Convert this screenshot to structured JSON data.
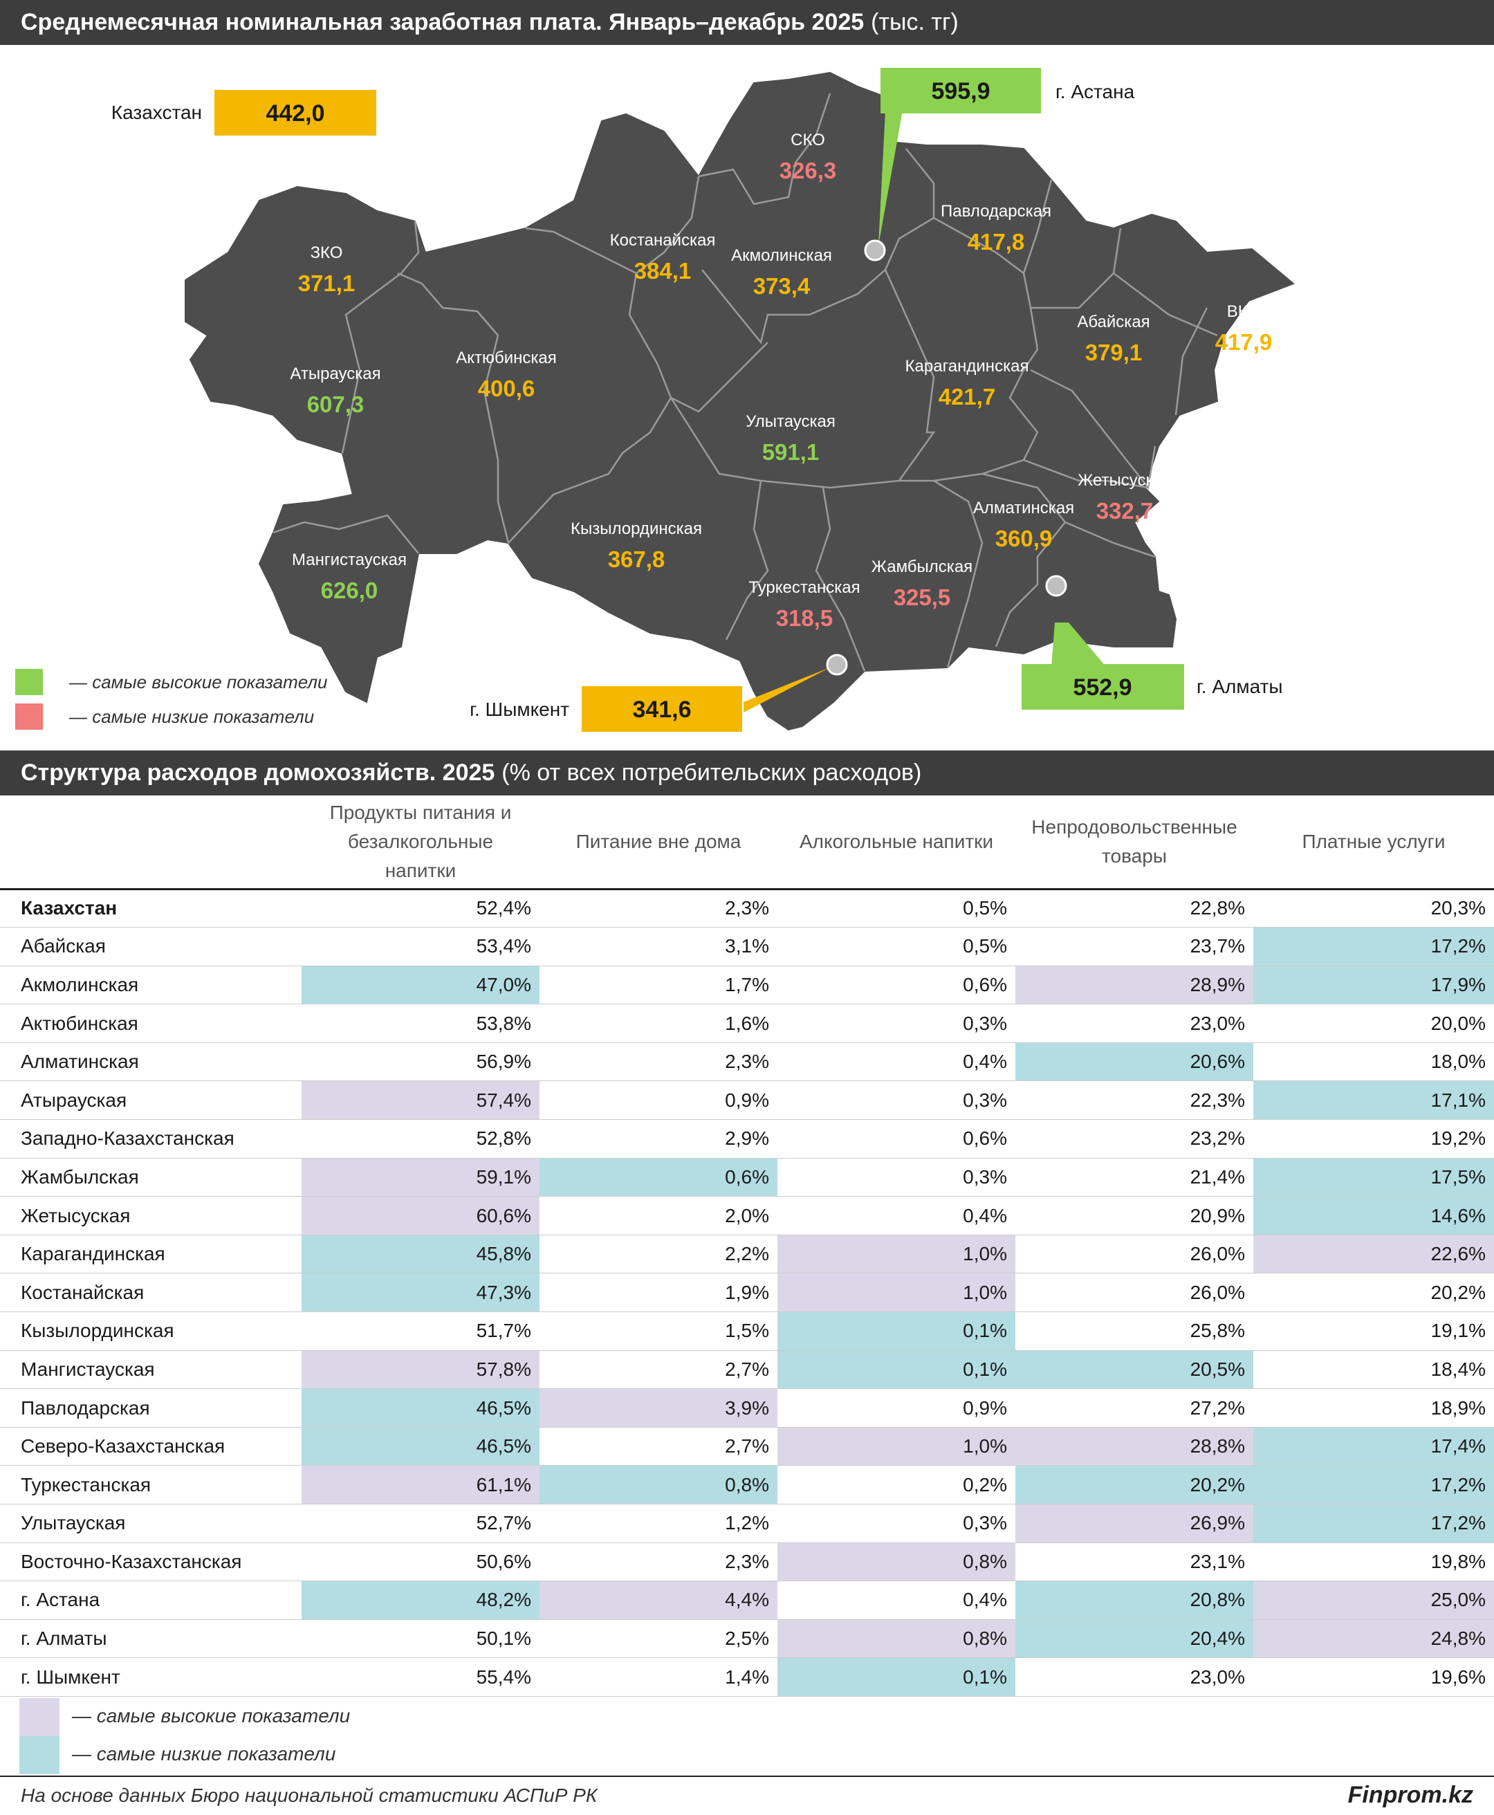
{
  "map": {
    "title": "Среднемесячная номинальная заработная плата. Январь–декабрь 2025",
    "unit": "(тыс. тг)",
    "colors": {
      "high": "#8dd150",
      "low": "#f27b7b",
      "normal": "#f4b800",
      "map_fill": "#4d4d4d",
      "borders": "#9a9a9a"
    },
    "kazakhstan": {
      "label": "Казахстан",
      "value": "442,0"
    },
    "regions": [
      {
        "id": "sko",
        "name": "СКО",
        "value": "326,3",
        "level": "low"
      },
      {
        "id": "kostanay",
        "name": "Костанайская",
        "value": "384,1",
        "level": "normal"
      },
      {
        "id": "akmola",
        "name": "Акмолинская",
        "value": "373,4",
        "level": "normal"
      },
      {
        "id": "pavlodar",
        "name": "Павлодарская",
        "value": "417,8",
        "level": "normal"
      },
      {
        "id": "zko",
        "name": "ЗКО",
        "value": "371,1",
        "level": "normal"
      },
      {
        "id": "atyrau",
        "name": "Атырауская",
        "value": "607,3",
        "level": "high"
      },
      {
        "id": "aktobe",
        "name": "Актюбинская",
        "value": "400,6",
        "level": "normal"
      },
      {
        "id": "abai",
        "name": "Абайская",
        "value": "379,1",
        "level": "normal"
      },
      {
        "id": "vko",
        "name": "ВКО",
        "value": "417,9",
        "level": "normal"
      },
      {
        "id": "karaganda",
        "name": "Карагандинская",
        "value": "421,7",
        "level": "normal"
      },
      {
        "id": "ulytau",
        "name": "Улытауская",
        "value": "591,1",
        "level": "high"
      },
      {
        "id": "zhetysu",
        "name": "Жетысуская",
        "value": "332,7",
        "level": "low"
      },
      {
        "id": "almaty_obl",
        "name": "Алматинская",
        "value": "360,9",
        "level": "normal"
      },
      {
        "id": "kyzylorda",
        "name": "Кызылординская",
        "value": "367,8",
        "level": "normal"
      },
      {
        "id": "mangystau",
        "name": "Мангистауская",
        "value": "626,0",
        "level": "high"
      },
      {
        "id": "zhambyl",
        "name": "Жамбылская",
        "value": "325,5",
        "level": "low"
      },
      {
        "id": "turkestan",
        "name": "Туркестанская",
        "value": "318,5",
        "level": "low"
      }
    ],
    "cities": [
      {
        "id": "astana",
        "name": "г. Астана",
        "value": "595,9",
        "level": "high"
      },
      {
        "id": "almaty",
        "name": "г. Алматы",
        "value": "552,9",
        "level": "high"
      },
      {
        "id": "shymkent",
        "name": "г. Шымкент",
        "value": "341,6",
        "level": "normal"
      }
    ],
    "legend": {
      "high": "— самые высокие показатели",
      "low": "— самые низкие показатели"
    }
  },
  "table": {
    "title": "Структура расходов домохозяйств. 2025",
    "unit": "(% от всех потребительских расходов)",
    "colors": {
      "high": "#dcd7e8",
      "low": "#b4dde3"
    },
    "columns": [
      {
        "label": "Продукты питания и безалкогольные напитки"
      },
      {
        "label": "Питание вне дома"
      },
      {
        "label": "Алкогольные напитки"
      },
      {
        "label": "Непродовольственные товары"
      },
      {
        "label": "Платные услуги"
      }
    ],
    "rows": [
      {
        "name": "Казахстан",
        "total": true,
        "cells": [
          {
            "v": "52,4%"
          },
          {
            "v": "2,3%"
          },
          {
            "v": "0,5%"
          },
          {
            "v": "22,8%"
          },
          {
            "v": "20,3%"
          }
        ]
      },
      {
        "name": "Абайская",
        "cells": [
          {
            "v": "53,4%"
          },
          {
            "v": "3,1%"
          },
          {
            "v": "0,5%"
          },
          {
            "v": "23,7%"
          },
          {
            "v": "17,2%",
            "h": "lo"
          }
        ]
      },
      {
        "name": "Акмолинская",
        "cells": [
          {
            "v": "47,0%",
            "h": "lo"
          },
          {
            "v": "1,7%"
          },
          {
            "v": "0,6%"
          },
          {
            "v": "28,9%",
            "h": "hi"
          },
          {
            "v": "17,9%",
            "h": "lo"
          }
        ]
      },
      {
        "name": "Актюбинская",
        "cells": [
          {
            "v": "53,8%"
          },
          {
            "v": "1,6%"
          },
          {
            "v": "0,3%"
          },
          {
            "v": "23,0%"
          },
          {
            "v": "20,0%"
          }
        ]
      },
      {
        "name": "Алматинская",
        "cells": [
          {
            "v": "56,9%"
          },
          {
            "v": "2,3%"
          },
          {
            "v": "0,4%"
          },
          {
            "v": "20,6%",
            "h": "lo"
          },
          {
            "v": "18,0%"
          }
        ]
      },
      {
        "name": "Атырауская",
        "cells": [
          {
            "v": "57,4%",
            "h": "hi"
          },
          {
            "v": "0,9%"
          },
          {
            "v": "0,3%"
          },
          {
            "v": "22,3%"
          },
          {
            "v": "17,1%",
            "h": "lo"
          }
        ]
      },
      {
        "name": "Западно-Казахстанская",
        "cells": [
          {
            "v": "52,8%"
          },
          {
            "v": "2,9%"
          },
          {
            "v": "0,6%"
          },
          {
            "v": "23,2%"
          },
          {
            "v": "19,2%"
          }
        ]
      },
      {
        "name": "Жамбылская",
        "cells": [
          {
            "v": "59,1%",
            "h": "hi"
          },
          {
            "v": "0,6%",
            "h": "lo"
          },
          {
            "v": "0,3%"
          },
          {
            "v": "21,4%"
          },
          {
            "v": "17,5%",
            "h": "lo"
          }
        ]
      },
      {
        "name": "Жетысуская",
        "cells": [
          {
            "v": "60,6%",
            "h": "hi"
          },
          {
            "v": "2,0%"
          },
          {
            "v": "0,4%"
          },
          {
            "v": "20,9%"
          },
          {
            "v": "14,6%",
            "h": "lo"
          }
        ]
      },
      {
        "name": "Карагандинская",
        "cells": [
          {
            "v": "45,8%",
            "h": "lo"
          },
          {
            "v": "2,2%"
          },
          {
            "v": "1,0%",
            "h": "hi"
          },
          {
            "v": "26,0%"
          },
          {
            "v": "22,6%",
            "h": "hi"
          }
        ]
      },
      {
        "name": "Костанайская",
        "cells": [
          {
            "v": "47,3%",
            "h": "lo"
          },
          {
            "v": "1,9%"
          },
          {
            "v": "1,0%",
            "h": "hi"
          },
          {
            "v": "26,0%"
          },
          {
            "v": "20,2%"
          }
        ]
      },
      {
        "name": "Кызылординская",
        "cells": [
          {
            "v": "51,7%"
          },
          {
            "v": "1,5%"
          },
          {
            "v": "0,1%",
            "h": "lo"
          },
          {
            "v": "25,8%"
          },
          {
            "v": "19,1%"
          }
        ]
      },
      {
        "name": "Мангистауская",
        "cells": [
          {
            "v": "57,8%",
            "h": "hi"
          },
          {
            "v": "2,7%"
          },
          {
            "v": "0,1%",
            "h": "lo"
          },
          {
            "v": "20,5%",
            "h": "lo"
          },
          {
            "v": "18,4%"
          }
        ]
      },
      {
        "name": "Павлодарская",
        "cells": [
          {
            "v": "46,5%",
            "h": "lo"
          },
          {
            "v": "3,9%",
            "h": "hi"
          },
          {
            "v": "0,9%"
          },
          {
            "v": "27,2%"
          },
          {
            "v": "18,9%"
          }
        ]
      },
      {
        "name": "Северо-Казахстанская",
        "cells": [
          {
            "v": "46,5%",
            "h": "lo"
          },
          {
            "v": "2,7%"
          },
          {
            "v": "1,0%",
            "h": "hi"
          },
          {
            "v": "28,8%",
            "h": "hi"
          },
          {
            "v": "17,4%",
            "h": "lo"
          }
        ]
      },
      {
        "name": "Туркестанская",
        "cells": [
          {
            "v": "61,1%",
            "h": "hi"
          },
          {
            "v": "0,8%",
            "h": "lo"
          },
          {
            "v": "0,2%"
          },
          {
            "v": "20,2%",
            "h": "lo"
          },
          {
            "v": "17,2%",
            "h": "lo"
          }
        ]
      },
      {
        "name": "Улытауская",
        "cells": [
          {
            "v": "52,7%"
          },
          {
            "v": "1,2%"
          },
          {
            "v": "0,3%"
          },
          {
            "v": "26,9%",
            "h": "hi"
          },
          {
            "v": "17,2%",
            "h": "lo"
          }
        ]
      },
      {
        "name": "Восточно-Казахстанская",
        "cells": [
          {
            "v": "50,6%"
          },
          {
            "v": "2,3%"
          },
          {
            "v": "0,8%",
            "h": "hi"
          },
          {
            "v": "23,1%"
          },
          {
            "v": "19,8%"
          }
        ]
      },
      {
        "name": "г. Астана",
        "cells": [
          {
            "v": "48,2%",
            "h": "lo"
          },
          {
            "v": "4,4%",
            "h": "hi"
          },
          {
            "v": "0,4%"
          },
          {
            "v": "20,8%",
            "h": "lo"
          },
          {
            "v": "25,0%",
            "h": "hi"
          }
        ]
      },
      {
        "name": "г. Алматы",
        "cells": [
          {
            "v": "50,1%"
          },
          {
            "v": "2,5%"
          },
          {
            "v": "0,8%",
            "h": "hi"
          },
          {
            "v": "20,4%",
            "h": "lo"
          },
          {
            "v": "24,8%",
            "h": "hi"
          }
        ]
      },
      {
        "name": "г. Шымкент",
        "cells": [
          {
            "v": "55,4%"
          },
          {
            "v": "1,4%"
          },
          {
            "v": "0,1%",
            "h": "lo"
          },
          {
            "v": "23,0%"
          },
          {
            "v": "19,6%"
          }
        ]
      }
    ],
    "legend": {
      "high": "— самые высокие показатели",
      "low": "— самые низкие показатели"
    }
  },
  "footer": {
    "source": "На основе данных Бюро национальной статистики АСПиР РК",
    "brand": "Finprom.kz"
  },
  "chart_data": [
    {
      "type": "choropleth-map",
      "title": "Среднемесячная номинальная заработная плата. Январь–декабрь 2025",
      "unit": "(тыс. тг)",
      "national": {
        "Казахстан": 442.0
      },
      "regions": {
        "СКО": 326.3,
        "Костанайская": 384.1,
        "Акмолинская": 373.4,
        "Павлодарская": 417.8,
        "ЗКО": 371.1,
        "Атырауская": 607.3,
        "Актюбинская": 400.6,
        "Абайская": 379.1,
        "ВКО": 417.9,
        "Карагандинская": 421.7,
        "Улытауская": 591.1,
        "Жетысуская": 332.7,
        "Алматинская": 360.9,
        "Кызылординская": 367.8,
        "Мангистауская": 626.0,
        "Жамбылская": 325.5,
        "Туркестанская": 318.5
      },
      "cities": {
        "г. Астана": 595.9,
        "г. Алматы": 552.9,
        "г. Шымкент": 341.6
      },
      "legend": [
        "— самые высокие показатели",
        "— самые низкие показатели"
      ]
    },
    {
      "type": "table",
      "title": "Структура расходов домохозяйств. 2025",
      "unit": "(% от всех потребительских расходов)",
      "columns": [
        "Продукты питания и безалкогольные напитки",
        "Питание вне дома",
        "Алкогольные напитки",
        "Непродовольственные товары",
        "Платные услуги"
      ],
      "rows": [
        [
          "Казахстан",
          52.4,
          2.3,
          0.5,
          22.8,
          20.3
        ],
        [
          "Абайская",
          53.4,
          3.1,
          0.5,
          23.7,
          17.2
        ],
        [
          "Акмолинская",
          47.0,
          1.7,
          0.6,
          28.9,
          17.9
        ],
        [
          "Актюбинская",
          53.8,
          1.6,
          0.3,
          23.0,
          20.0
        ],
        [
          "Алматинская",
          56.9,
          2.3,
          0.4,
          20.6,
          18.0
        ],
        [
          "Атырауская",
          57.4,
          0.9,
          0.3,
          22.3,
          17.1
        ],
        [
          "Западно-Казахстанская",
          52.8,
          2.9,
          0.6,
          23.2,
          19.2
        ],
        [
          "Жамбылская",
          59.1,
          0.6,
          0.3,
          21.4,
          17.5
        ],
        [
          "Жетысуская",
          60.6,
          2.0,
          0.4,
          20.9,
          14.6
        ],
        [
          "Карагандинская",
          45.8,
          2.2,
          1.0,
          26.0,
          22.6
        ],
        [
          "Костанайская",
          47.3,
          1.9,
          1.0,
          26.0,
          20.2
        ],
        [
          "Кызылординская",
          51.7,
          1.5,
          0.1,
          25.8,
          19.1
        ],
        [
          "Мангистауская",
          57.8,
          2.7,
          0.1,
          20.5,
          18.4
        ],
        [
          "Павлодарская",
          46.5,
          3.9,
          0.9,
          27.2,
          18.9
        ],
        [
          "Северо-Казахстанская",
          46.5,
          2.7,
          1.0,
          28.8,
          17.4
        ],
        [
          "Туркестанская",
          61.1,
          0.8,
          0.2,
          20.2,
          17.2
        ],
        [
          "Улытауская",
          52.7,
          1.2,
          0.3,
          26.9,
          17.2
        ],
        [
          "Восточно-Казахстанская",
          50.6,
          2.3,
          0.8,
          23.1,
          19.8
        ],
        [
          "г. Астана",
          48.2,
          4.4,
          0.4,
          20.8,
          25.0
        ],
        [
          "г. Алматы",
          50.1,
          2.5,
          0.8,
          20.4,
          24.8
        ],
        [
          "г. Шымкент",
          55.4,
          1.4,
          0.1,
          23.0,
          19.6
        ]
      ],
      "legend": [
        "— самые высокие показатели",
        "— самые низкие показатели"
      ]
    }
  ]
}
